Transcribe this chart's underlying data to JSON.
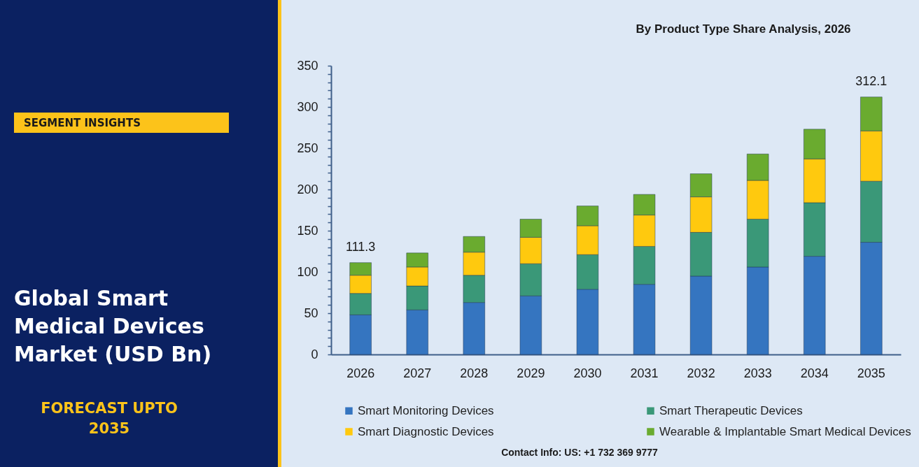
{
  "chart_data": {
    "type": "bar",
    "stacked": true,
    "title": "Global Smart Medical Devices Market (USD Bn)",
    "subtitle": "By Product Type Share Analysis, 2026",
    "annotations": [
      "SEGMENT INSIGHTS",
      "FORECAST UPTO 2035",
      "Contact Info: US: +1 732 369 9777"
    ],
    "categories": [
      "2026",
      "2027",
      "2028",
      "2029",
      "2030",
      "2031",
      "2032",
      "2033",
      "2034",
      "2035"
    ],
    "series": [
      {
        "name": "Smart Monitoring Devices",
        "color": "#3575c0",
        "values": [
          48,
          54,
          63,
          71,
          79,
          85,
          95,
          106,
          119,
          136
        ]
      },
      {
        "name": "Smart Therapeutic Devices",
        "color": "#3a9878",
        "values": [
          26,
          29,
          33,
          39,
          42,
          46,
          53,
          58,
          65,
          74
        ]
      },
      {
        "name": "Smart Diagnostic Devices",
        "color": "#ffc90e",
        "values": [
          22,
          23,
          28,
          32,
          35,
          38,
          43,
          47,
          53,
          61
        ]
      },
      {
        "name": "Wearable & Implantable Smart Medical Devices",
        "color": "#6aab2f",
        "values": [
          15.3,
          17,
          19,
          22,
          24,
          25,
          28,
          32,
          36,
          41.1
        ]
      }
    ],
    "totals": [
      "111.3",
      null,
      null,
      null,
      null,
      null,
      null,
      null,
      null,
      "312.1"
    ],
    "ylim": [
      0,
      350
    ],
    "yticks": [
      0,
      {
        "value": 10,
        "label": null
      },
      {
        "value": 20,
        "label": null
      },
      {
        "value": 30,
        "label": null
      },
      {
        "value": 40,
        "label": null
      },
      50,
      {
        "value": 60,
        "label": null
      },
      {
        "value": 70,
        "label": null
      },
      {
        "value": 80,
        "label": null
      },
      {
        "value": 90,
        "label": null
      },
      100,
      {
        "value": 110,
        "label": null
      },
      {
        "value": 120,
        "label": null
      },
      {
        "value": 130,
        "label": null
      },
      {
        "value": 140,
        "label": null
      },
      150,
      {
        "value": 160,
        "label": null
      },
      {
        "value": 170,
        "label": null
      },
      {
        "value": 180,
        "label": null
      },
      {
        "value": 190,
        "label": null
      },
      200,
      {
        "value": 210,
        "label": null
      },
      {
        "value": 220,
        "label": null
      },
      {
        "value": 230,
        "label": null
      },
      {
        "value": 240,
        "label": null
      },
      250,
      {
        "value": 260,
        "label": null
      },
      {
        "value": 270,
        "label": null
      },
      {
        "value": 280,
        "label": null
      },
      {
        "value": 290,
        "label": null
      },
      300,
      {
        "value": 310,
        "label": null
      },
      {
        "value": 320,
        "label": null
      },
      {
        "value": 330,
        "label": null
      },
      {
        "value": 340,
        "label": null
      },
      350
    ],
    "grid": false,
    "legend": "bottom"
  }
}
